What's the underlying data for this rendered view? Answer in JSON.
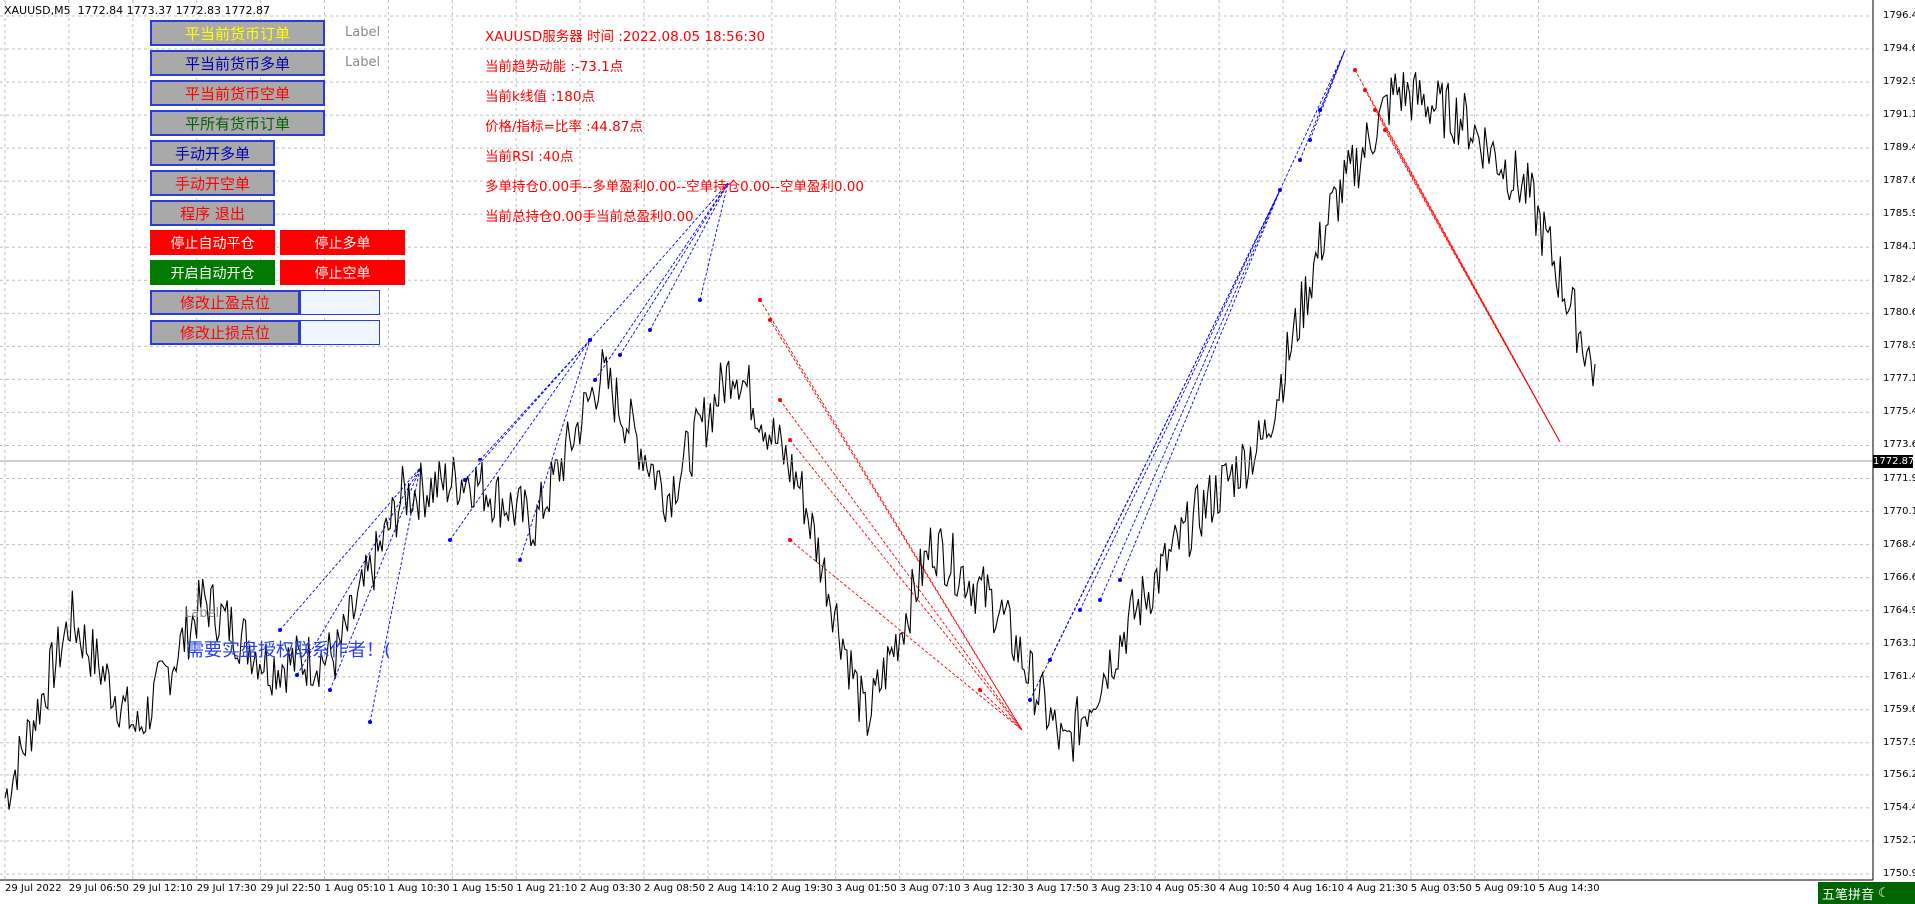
{
  "symbol_header": "XAUUSD,M5  1772.84 1773.37 1772.83 1772.87",
  "buttons": {
    "close_current": "平当前货币订单",
    "close_current_buy": "平当前货币多单",
    "close_current_sell": "平当前货币空单",
    "close_all": "平所有货币订单",
    "manual_buy": "手动开多单",
    "manual_sell": "手动开空单",
    "exit_program": "程序 退出",
    "stop_auto_close": "停止自动平仓",
    "stop_buy": "停止多单",
    "start_auto_open": "开启自动开仓",
    "stop_sell": "停止空单",
    "modify_tp": "修改止盈点位",
    "modify_sl": "修改止损点位"
  },
  "labels": {
    "label1": "Label",
    "label2": "Label",
    "label3": "Label"
  },
  "info": {
    "server_time": "XAUUSD服务器  时间 :2022.08.05 18:56:30",
    "trend_momentum": "当前趋势动能 :-73.1点",
    "kline_value": "当前k线值 :180点",
    "price_indicator_ratio": "价格/指标=比率 :44.87点",
    "rsi": "当前RSI :40点",
    "positions": "多单持仓0.00手--多单盈利0.00--空单持仓0.00--空单盈利0.00",
    "total": "当前总持仓0.00手当前总盈利0.00"
  },
  "notice": "需要实盘授权联系作者！(",
  "current_price": "1772.87",
  "price_scale": [
    "1796.40",
    "1794.65",
    "1792.90",
    "1791.15",
    "1789.40",
    "1787.65",
    "1785.90",
    "1784.15",
    "1782.40",
    "1780.65",
    "1778.90",
    "1777.15",
    "1775.40",
    "1773.65",
    "1771.90",
    "1770.15",
    "1768.40",
    "1766.65",
    "1764.90",
    "1763.15",
    "1761.40",
    "1759.65",
    "1757.90",
    "1756.20",
    "1754.45",
    "1752.70",
    "1750.95"
  ],
  "time_scale": [
    "29 Jul 2022",
    "29 Jul 06:50",
    "29 Jul 12:10",
    "29 Jul 17:30",
    "29 Jul 22:50",
    "1 Aug 05:10",
    "1 Aug 10:30",
    "1 Aug 15:50",
    "1 Aug 21:10",
    "2 Aug 03:30",
    "2 Aug 08:50",
    "2 Aug 14:10",
    "2 Aug 19:30",
    "3 Aug 01:50",
    "3 Aug 07:10",
    "3 Aug 12:30",
    "3 Aug 17:50",
    "3 Aug 23:10",
    "4 Aug 05:30",
    "4 Aug 10:50",
    "4 Aug 16:10",
    "4 Aug 21:30",
    "5 Aug 03:50",
    "5 Aug 09:10",
    "5 Aug 14:30"
  ],
  "ime_label": "五笔拼音",
  "colors": {
    "buy_line": "#0000ff",
    "sell_line": "#ff0000",
    "grid": "#c0c0c0",
    "price": "#000000"
  },
  "chart_data": {
    "type": "line",
    "x": [
      "29 Jul 2022",
      "29 Jul 06:50",
      "29 Jul 12:10",
      "29 Jul 17:30",
      "29 Jul 22:50",
      "1 Aug 05:10",
      "1 Aug 10:30",
      "1 Aug 15:50",
      "1 Aug 21:10",
      "2 Aug 03:30",
      "2 Aug 08:50",
      "2 Aug 14:10",
      "2 Aug 19:30",
      "3 Aug 01:50",
      "3 Aug 07:10",
      "3 Aug 12:30",
      "3 Aug 17:50",
      "3 Aug 23:10",
      "4 Aug 05:30",
      "4 Aug 10:50",
      "4 Aug 16:10",
      "4 Aug 21:30",
      "5 Aug 03:50",
      "5 Aug 09:10",
      "5 Aug 14:30"
    ],
    "series": [
      {
        "name": "",
        "values": [
          1755.0,
          1764.5,
          1758.5,
          1765.5,
          1762.0,
          1762.5,
          1771.0,
          1772.0,
          1769.5,
          1777.5,
          1771.0,
          1778.0,
          1771.5,
          1759.0,
          1768.5,
          1765.0,
          1757.5,
          1764.5,
          1770.0,
          1774.0,
          1786.0,
          1792.5,
          1791.0,
          1787.0,
          1777.5
        ]
      }
    ],
    "ylim": [
      1750.95,
      1796.4
    ],
    "grid": true
  }
}
